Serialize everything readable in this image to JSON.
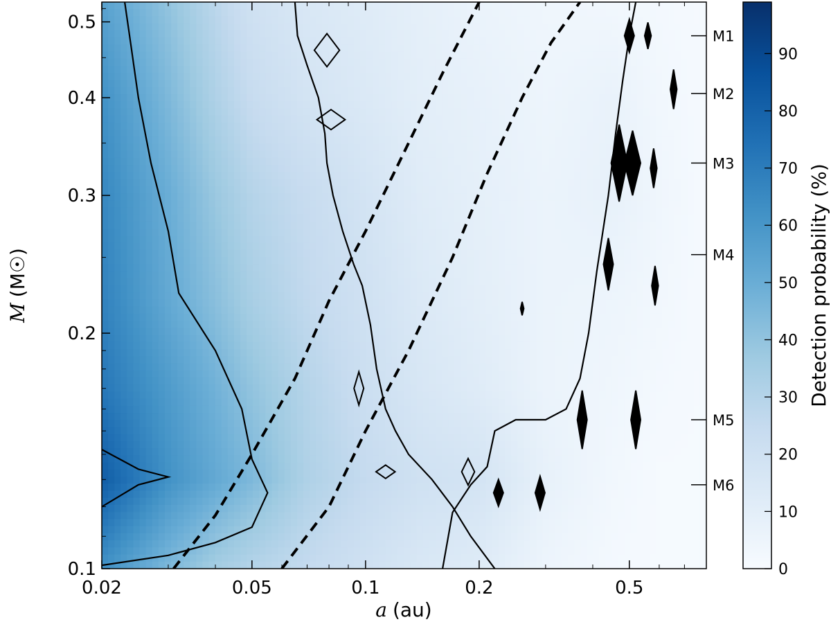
{
  "chart_data": {
    "type": "heatmap",
    "title": "",
    "xlabel": "a (au)",
    "xlabel_symbol": "a",
    "xlabel_unit": "(au)",
    "ylabel": "M (M☉)",
    "ylabel_symbol": "M",
    "ylabel_unit": "(M☉)",
    "x_scale": "log",
    "y_scale": "log",
    "xlim": [
      0.02,
      0.8
    ],
    "ylim": [
      0.1,
      0.53
    ],
    "x_ticks": [
      {
        "value": 0.02,
        "label": "0.02"
      },
      {
        "value": 0.05,
        "label": "0.05"
      },
      {
        "value": 0.1,
        "label": "0.1"
      },
      {
        "value": 0.2,
        "label": "0.2"
      },
      {
        "value": 0.5,
        "label": "0.5"
      }
    ],
    "y_ticks": [
      {
        "value": 0.1,
        "label": "0.1"
      },
      {
        "value": 0.2,
        "label": "0.2"
      },
      {
        "value": 0.3,
        "label": "0.3"
      },
      {
        "value": 0.4,
        "label": "0.4"
      },
      {
        "value": 0.5,
        "label": "0.5"
      }
    ],
    "spectral_types": [
      {
        "label": "M1",
        "mass": 0.48
      },
      {
        "label": "M2",
        "mass": 0.405
      },
      {
        "label": "M3",
        "mass": 0.33
      },
      {
        "label": "M4",
        "mass": 0.252
      },
      {
        "label": "M5",
        "mass": 0.155
      },
      {
        "label": "M6",
        "mass": 0.128
      }
    ],
    "colorbar": {
      "label": "Detection probability (%)",
      "range": [
        0,
        99
      ],
      "ticks": [
        {
          "value": 0,
          "label": "0"
        },
        {
          "value": 10,
          "label": "10"
        },
        {
          "value": 20,
          "label": "20"
        },
        {
          "value": 30,
          "label": "30"
        },
        {
          "value": 40,
          "label": "40"
        },
        {
          "value": 50,
          "label": "50"
        },
        {
          "value": 60,
          "label": "60"
        },
        {
          "value": 70,
          "label": "70"
        },
        {
          "value": 80,
          "label": "80"
        },
        {
          "value": 90,
          "label": "90"
        }
      ],
      "colormap": "Blues",
      "color_low": "#f7fbff",
      "color_high": "#08306b"
    },
    "probability_grid": {
      "x": [
        0.02,
        0.03,
        0.04,
        0.05,
        0.07,
        0.1,
        0.14,
        0.2,
        0.3,
        0.45,
        0.6,
        0.8
      ],
      "y": [
        0.1,
        0.13,
        0.17,
        0.22,
        0.3,
        0.4,
        0.53
      ],
      "z": [
        [
          62,
          45,
          35,
          30,
          25,
          20,
          15,
          12,
          5,
          2,
          1,
          1
        ],
        [
          82,
          62,
          52,
          45,
          32,
          25,
          20,
          18,
          8,
          3,
          1,
          1
        ],
        [
          72,
          58,
          48,
          40,
          30,
          22,
          16,
          12,
          6,
          4,
          2,
          1
        ],
        [
          68,
          52,
          42,
          34,
          26,
          20,
          14,
          10,
          6,
          5,
          3,
          1
        ],
        [
          66,
          50,
          38,
          30,
          24,
          18,
          12,
          9,
          6,
          8,
          4,
          1
        ],
        [
          62,
          45,
          32,
          24,
          18,
          14,
          10,
          8,
          5,
          7,
          3,
          1
        ],
        [
          55,
          40,
          28,
          20,
          15,
          12,
          9,
          6,
          4,
          3,
          2,
          1
        ]
      ]
    },
    "contours": [
      {
        "name": "contour-outer",
        "points": [
          [
            0.02,
            0.101
          ],
          [
            0.03,
            0.104
          ],
          [
            0.04,
            0.108
          ],
          [
            0.05,
            0.113
          ],
          [
            0.055,
            0.125
          ],
          [
            0.05,
            0.138
          ],
          [
            0.047,
            0.16
          ],
          [
            0.04,
            0.19
          ],
          [
            0.032,
            0.225
          ],
          [
            0.03,
            0.27
          ],
          [
            0.027,
            0.33
          ],
          [
            0.025,
            0.4
          ],
          [
            0.024,
            0.46
          ],
          [
            0.023,
            0.53
          ]
        ]
      },
      {
        "name": "contour-inner",
        "points": [
          [
            0.02,
            0.12
          ],
          [
            0.025,
            0.128
          ],
          [
            0.03,
            0.131
          ],
          [
            0.025,
            0.134
          ],
          [
            0.02,
            0.142
          ]
        ]
      },
      {
        "name": "contour-mid",
        "points": [
          [
            0.065,
            0.53
          ],
          [
            0.066,
            0.48
          ],
          [
            0.07,
            0.44
          ],
          [
            0.075,
            0.4
          ],
          [
            0.078,
            0.36
          ],
          [
            0.079,
            0.33
          ],
          [
            0.082,
            0.3
          ],
          [
            0.087,
            0.27
          ],
          [
            0.093,
            0.245
          ],
          [
            0.098,
            0.23
          ],
          [
            0.103,
            0.205
          ],
          [
            0.107,
            0.18
          ],
          [
            0.113,
            0.16
          ],
          [
            0.12,
            0.15
          ],
          [
            0.13,
            0.14
          ],
          [
            0.15,
            0.13
          ],
          [
            0.17,
            0.12
          ],
          [
            0.19,
            0.11
          ],
          [
            0.22,
            0.1
          ]
        ]
      },
      {
        "name": "contour-right",
        "points": [
          [
            0.16,
            0.1
          ],
          [
            0.17,
            0.118
          ],
          [
            0.19,
            0.128
          ],
          [
            0.21,
            0.135
          ],
          [
            0.22,
            0.15
          ],
          [
            0.25,
            0.155
          ],
          [
            0.3,
            0.155
          ],
          [
            0.34,
            0.16
          ],
          [
            0.37,
            0.175
          ],
          [
            0.39,
            0.2
          ],
          [
            0.41,
            0.24
          ],
          [
            0.44,
            0.3
          ],
          [
            0.46,
            0.36
          ],
          [
            0.48,
            0.42
          ],
          [
            0.5,
            0.48
          ],
          [
            0.52,
            0.53
          ]
        ]
      }
    ],
    "contour_islands": [
      {
        "a": 0.079,
        "m": 0.46,
        "w": 1.08,
        "h": 1.05
      },
      {
        "a": 0.081,
        "m": 0.375,
        "w": 1.09,
        "h": 1.03
      },
      {
        "a": 0.096,
        "m": 0.17,
        "w": 1.03,
        "h": 1.05
      },
      {
        "a": 0.113,
        "m": 0.133,
        "w": 1.06,
        "h": 1.02
      },
      {
        "a": 0.187,
        "m": 0.133,
        "w": 1.04,
        "h": 1.04
      },
      {
        "a": 0.26,
        "m": 0.215,
        "w": 1.01,
        "h": 1.02
      },
      {
        "a": 0.225,
        "m": 0.125,
        "w": 1.03,
        "h": 1.04
      },
      {
        "a": 0.29,
        "m": 0.125,
        "w": 1.03,
        "h": 1.05
      },
      {
        "a": 0.375,
        "m": 0.155,
        "w": 1.03,
        "h": 1.09
      },
      {
        "a": 0.44,
        "m": 0.245,
        "w": 1.03,
        "h": 1.08
      },
      {
        "a": 0.47,
        "m": 0.33,
        "w": 1.05,
        "h": 1.12
      },
      {
        "a": 0.51,
        "m": 0.33,
        "w": 1.05,
        "h": 1.1
      },
      {
        "a": 0.5,
        "m": 0.48,
        "w": 1.03,
        "h": 1.05
      },
      {
        "a": 0.56,
        "m": 0.48,
        "w": 1.02,
        "h": 1.04
      },
      {
        "a": 0.58,
        "m": 0.325,
        "w": 1.02,
        "h": 1.06
      },
      {
        "a": 0.585,
        "m": 0.23,
        "w": 1.02,
        "h": 1.06
      },
      {
        "a": 0.52,
        "m": 0.155,
        "w": 1.03,
        "h": 1.09
      },
      {
        "a": 0.655,
        "m": 0.41,
        "w": 1.02,
        "h": 1.06
      }
    ],
    "dashed_curves": [
      {
        "name": "dashed-curve-left",
        "points": [
          [
            0.031,
            0.1
          ],
          [
            0.04,
            0.117
          ],
          [
            0.05,
            0.14
          ],
          [
            0.065,
            0.175
          ],
          [
            0.08,
            0.22
          ],
          [
            0.1,
            0.27
          ],
          [
            0.13,
            0.35
          ],
          [
            0.16,
            0.43
          ],
          [
            0.2,
            0.53
          ]
        ]
      },
      {
        "name": "dashed-curve-right",
        "points": [
          [
            0.06,
            0.1
          ],
          [
            0.08,
            0.12
          ],
          [
            0.1,
            0.15
          ],
          [
            0.13,
            0.19
          ],
          [
            0.17,
            0.25
          ],
          [
            0.21,
            0.32
          ],
          [
            0.26,
            0.4
          ],
          [
            0.31,
            0.47
          ],
          [
            0.37,
            0.53
          ]
        ]
      }
    ]
  }
}
